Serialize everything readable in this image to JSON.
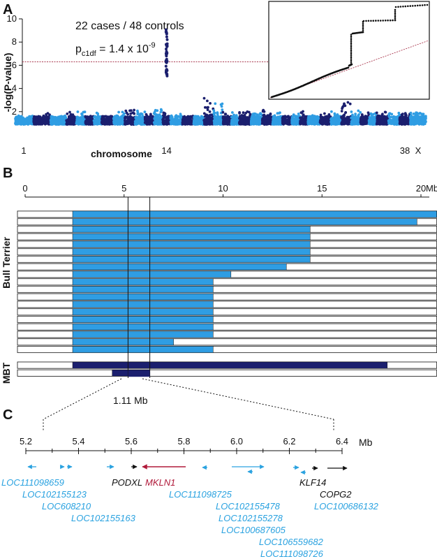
{
  "colors": {
    "light_blue": "#2f9de3",
    "dark_blue": "#1b1f6e",
    "red_line": "#a0203a",
    "gene_blue": "#2aa2e0",
    "gene_black": "#111111",
    "gene_red": "#b01a3a"
  },
  "panel_a": {
    "letter": "A",
    "annotation_line1": "22 cases / 48 controls",
    "annotation_p_prefix": "p",
    "annotation_p_sub": "c1df",
    "annotation_p_mid": " = 1.4 x 10",
    "annotation_p_sup": "-9",
    "ylabel": "-log(P-value)",
    "xlabel": "chromosome",
    "x_tick_labels": [
      "1",
      "14",
      "38",
      "X"
    ]
  },
  "panel_b": {
    "letter": "B",
    "group_label_bt": "Bull Terrier",
    "group_label_mbt": "MBT",
    "interval_label": "1.11 Mb"
  },
  "panel_c": {
    "letter": "C",
    "unit": "Mb"
  },
  "chart_data": [
    {
      "type": "scatter",
      "name": "manhattan",
      "ylim": [
        0,
        10
      ],
      "y_ticks": [
        2,
        4,
        6,
        8,
        10
      ],
      "significance_threshold": 6.3,
      "chromosomes": 39,
      "peak": {
        "chromosome": 14,
        "y_min": 5.0,
        "y_max": 9.1
      },
      "other_peaks": [
        {
          "chromosome": 13,
          "y": 2.3
        },
        {
          "chromosome": 18,
          "y": 3.3
        },
        {
          "chromosome": 19,
          "y": 2.7
        },
        {
          "chromosome": 32,
          "y": 2.9
        }
      ]
    },
    {
      "type": "scatter",
      "name": "qq_inset",
      "description_points": "observed vs expected -log10 p"
    },
    {
      "type": "bar",
      "name": "haplotypes",
      "x_ticks": [
        0,
        5,
        10,
        15,
        20
      ],
      "x_unit": "Mb",
      "xlim": [
        0,
        20.8
      ],
      "bull_terrier_haplotypes": [
        [
          2.4,
          20.8
        ],
        [
          2.4,
          19.8
        ],
        [
          2.4,
          14.4
        ],
        [
          2.4,
          14.4
        ],
        [
          2.4,
          14.4
        ],
        [
          2.4,
          14.4
        ],
        [
          2.4,
          14.4
        ],
        [
          2.4,
          13.2
        ],
        [
          2.4,
          10.4
        ],
        [
          2.4,
          9.5
        ],
        [
          2.4,
          9.5
        ],
        [
          2.4,
          9.5
        ],
        [
          2.4,
          9.5
        ],
        [
          2.4,
          9.5
        ],
        [
          2.4,
          9.5
        ],
        [
          2.4,
          9.5
        ],
        [
          2.4,
          9.5
        ],
        [
          2.4,
          7.5
        ],
        [
          2.4,
          9.5
        ]
      ],
      "mbt_haplotypes": [
        [
          2.4,
          18.3
        ],
        [
          4.4,
          6.3
        ]
      ],
      "critical_interval": [
        5.2,
        6.3
      ]
    },
    {
      "type": "table",
      "name": "genes",
      "x_ticks": [
        "5.2",
        "5.4",
        "5.6",
        "5.8",
        "6.0",
        "6.2",
        "6.4"
      ],
      "genes": [
        {
          "name": "LOC111098659",
          "color": "blue"
        },
        {
          "name": "LOC102155123",
          "color": "blue"
        },
        {
          "name": "LOC608210",
          "color": "blue"
        },
        {
          "name": "LOC102155163",
          "color": "blue"
        },
        {
          "name": "PODXL",
          "color": "black"
        },
        {
          "name": "MKLN1",
          "color": "red"
        },
        {
          "name": "LOC111098725",
          "color": "blue"
        },
        {
          "name": "LOC102155478",
          "color": "blue"
        },
        {
          "name": "LOC102155278",
          "color": "blue"
        },
        {
          "name": "LOC100687605",
          "color": "blue"
        },
        {
          "name": "LOC106559682",
          "color": "blue"
        },
        {
          "name": "LOC111098726",
          "color": "blue"
        },
        {
          "name": "KLF14",
          "color": "black"
        },
        {
          "name": "COPG2",
          "color": "black"
        },
        {
          "name": "LOC100686132",
          "color": "blue"
        }
      ]
    }
  ]
}
